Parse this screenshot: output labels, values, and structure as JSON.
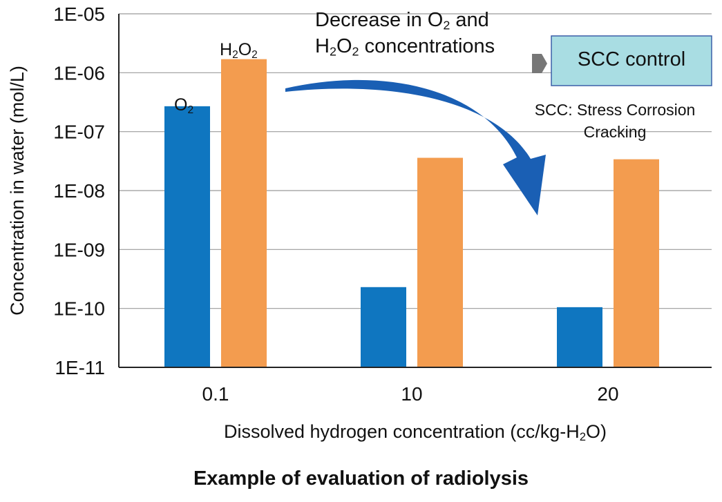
{
  "chart_data": {
    "type": "bar",
    "title": "Example of evaluation of radiolysis",
    "xlabel": "Dissolved hydrogen concentration (cc/kg-H2O)",
    "ylabel": "Concentration in water (mol/L)",
    "yscale": "log",
    "ylim": [
      1e-11,
      1e-05
    ],
    "yticks": [
      "1E-11",
      "1E-10",
      "1E-09",
      "1E-08",
      "1E-07",
      "1E-06",
      "1E-05"
    ],
    "categories": [
      "0.1",
      "10",
      "20"
    ],
    "grid": "horizontal",
    "series": [
      {
        "name": "O2",
        "color": "#0f76c0",
        "values": [
          2.7e-07,
          2.3e-10,
          1.05e-10
        ]
      },
      {
        "name": "H2O2",
        "color": "#f39c4f",
        "values": [
          1.7e-06,
          3.6e-08,
          3.4e-08
        ]
      }
    ],
    "annotations": {
      "decrease_line1": [
        "Decrease in O",
        "2",
        " and"
      ],
      "decrease_line2": [
        "H",
        "2",
        "O",
        "2",
        " concentrations"
      ],
      "scc_box": "SCC control",
      "scc_note_line1": "SCC: Stress Corrosion",
      "scc_note_line2": "Cracking",
      "box_color": "#a9dde3",
      "arrow_color": "#1a5fb4"
    }
  },
  "labels": {
    "xlabel": [
      "Dissolved hydrogen concentration (cc/kg-H",
      "2",
      "O)"
    ],
    "ylabel": "Concentration in water (mol/L)",
    "o2": [
      "O",
      "2"
    ],
    "h2o2": [
      "H",
      "2",
      "O",
      "2"
    ]
  }
}
